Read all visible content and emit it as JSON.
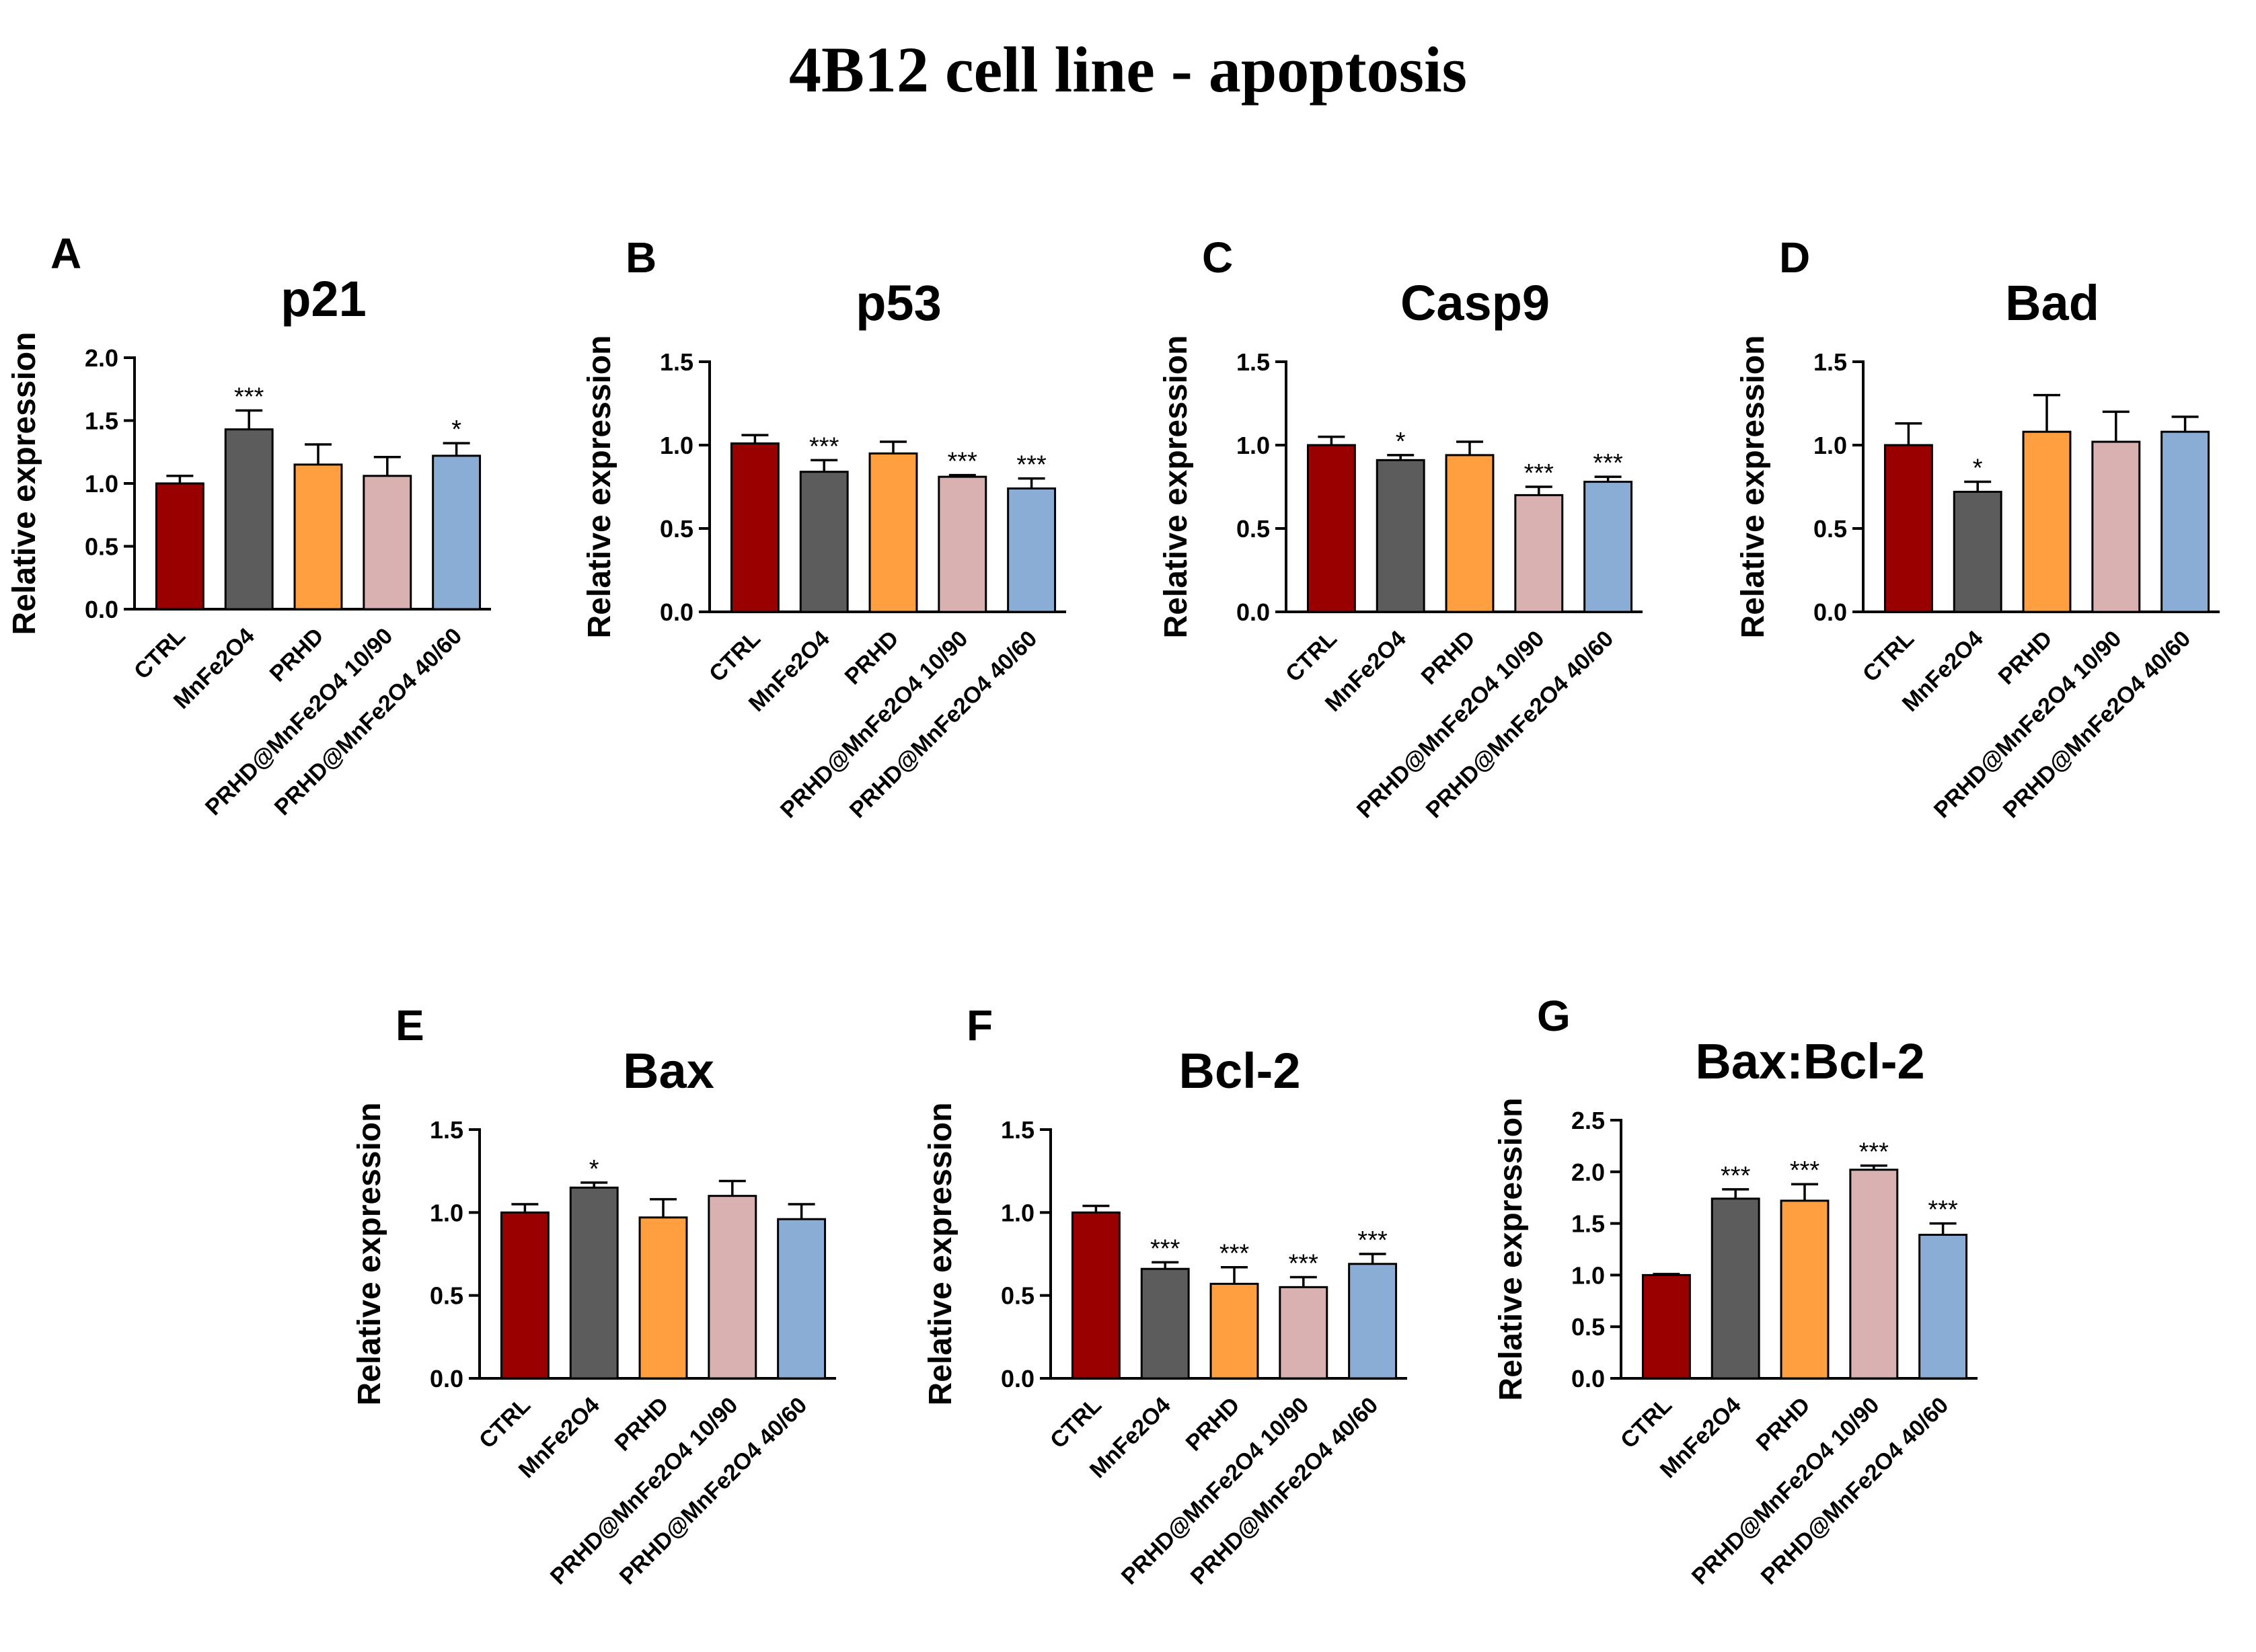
{
  "figure": {
    "title": "4B12 cell line - apoptosis",
    "colors": [
      "#990000",
      "#5c5c5c",
      "#ff9f3f",
      "#d9b1b1",
      "#8aadd5"
    ]
  },
  "chart_data": [
    {
      "type": "bar",
      "panel": "A",
      "title": "p21",
      "ylabel": "Relative expression",
      "xlabel": "",
      "ylim": [
        0,
        2.0
      ],
      "yticks": [
        "0.0",
        "0.5",
        "1.0",
        "1.5",
        "2.0"
      ],
      "categories": [
        "CTRL",
        "MnFe2O4",
        "PRHD",
        "PRHD@MnFe2O4 10/90",
        "PRHD@MnFe2O4 40/60"
      ],
      "values": [
        1.0,
        1.43,
        1.15,
        1.06,
        1.22
      ],
      "errors": [
        0.06,
        0.15,
        0.16,
        0.15,
        0.1
      ],
      "significance": [
        "",
        "***",
        "",
        "",
        "*"
      ]
    },
    {
      "type": "bar",
      "panel": "B",
      "title": "p53",
      "ylabel": "Relative expression",
      "xlabel": "",
      "ylim": [
        0,
        1.5
      ],
      "yticks": [
        "0.0",
        "0.5",
        "1.0",
        "1.5"
      ],
      "categories": [
        "CTRL",
        "MnFe2O4",
        "PRHD",
        "PRHD@MnFe2O4 10/90",
        "PRHD@MnFe2O4 40/60"
      ],
      "values": [
        1.01,
        0.84,
        0.95,
        0.81,
        0.74
      ],
      "errors": [
        0.05,
        0.07,
        0.07,
        0.01,
        0.06
      ],
      "significance": [
        "",
        "***",
        "",
        "***",
        "***"
      ]
    },
    {
      "type": "bar",
      "panel": "C",
      "title": "Casp9",
      "ylabel": "Relative expression",
      "xlabel": "",
      "ylim": [
        0,
        1.5
      ],
      "yticks": [
        "0.0",
        "0.5",
        "1.0",
        "1.5"
      ],
      "categories": [
        "CTRL",
        "MnFe2O4",
        "PRHD",
        "PRHD@MnFe2O4 10/90",
        "PRHD@MnFe2O4 40/60"
      ],
      "values": [
        1.0,
        0.91,
        0.94,
        0.7,
        0.78
      ],
      "errors": [
        0.05,
        0.03,
        0.08,
        0.05,
        0.03
      ],
      "significance": [
        "",
        "*",
        "",
        "***",
        "***"
      ]
    },
    {
      "type": "bar",
      "panel": "D",
      "title": "Bad",
      "ylabel": "Relative expression",
      "xlabel": "",
      "ylim": [
        0,
        1.5
      ],
      "yticks": [
        "0.0",
        "0.5",
        "1.0",
        "1.5"
      ],
      "categories": [
        "CTRL",
        "MnFe2O4",
        "PRHD",
        "PRHD@MnFe2O4 10/90",
        "PRHD@MnFe2O4 40/60"
      ],
      "values": [
        1.0,
        0.72,
        1.08,
        1.02,
        1.08
      ],
      "errors": [
        0.13,
        0.06,
        0.22,
        0.18,
        0.09
      ],
      "significance": [
        "",
        "*",
        "",
        "",
        ""
      ]
    },
    {
      "type": "bar",
      "panel": "E",
      "title": "Bax",
      "ylabel": "Relative expression",
      "xlabel": "",
      "ylim": [
        0,
        1.5
      ],
      "yticks": [
        "0.0",
        "0.5",
        "1.0",
        "1.5"
      ],
      "categories": [
        "CTRL",
        "MnFe2O4",
        "PRHD",
        "PRHD@MnFe2O4 10/90",
        "PRHD@MnFe2O4 40/60"
      ],
      "values": [
        1.0,
        1.15,
        0.97,
        1.1,
        0.96
      ],
      "errors": [
        0.05,
        0.03,
        0.11,
        0.09,
        0.09
      ],
      "significance": [
        "",
        "*",
        "",
        "",
        ""
      ]
    },
    {
      "type": "bar",
      "panel": "F",
      "title": "Bcl-2",
      "ylabel": "Relative expression",
      "xlabel": "",
      "ylim": [
        0,
        1.5
      ],
      "yticks": [
        "0.0",
        "0.5",
        "1.0",
        "1.5"
      ],
      "categories": [
        "CTRL",
        "MnFe2O4",
        "PRHD",
        "PRHD@MnFe2O4 10/90",
        "PRHD@MnFe2O4 40/60"
      ],
      "values": [
        1.0,
        0.66,
        0.57,
        0.55,
        0.69
      ],
      "errors": [
        0.04,
        0.04,
        0.1,
        0.06,
        0.06
      ],
      "significance": [
        "",
        "***",
        "***",
        "***",
        "***"
      ]
    },
    {
      "type": "bar",
      "panel": "G",
      "title": "Bax:Bcl-2",
      "ylabel": "Relative expression",
      "xlabel": "",
      "ylim": [
        0,
        2.5
      ],
      "yticks": [
        "0.0",
        "0.5",
        "1.0",
        "1.5",
        "2.0",
        "2.5"
      ],
      "categories": [
        "CTRL",
        "MnFe2O4",
        "PRHD",
        "PRHD@MnFe2O4 10/90",
        "PRHD@MnFe2O4 40/60"
      ],
      "values": [
        1.0,
        1.74,
        1.72,
        2.02,
        1.39
      ],
      "errors": [
        0.01,
        0.09,
        0.16,
        0.04,
        0.11
      ],
      "significance": [
        "",
        "***",
        "***",
        "***",
        "***"
      ]
    }
  ]
}
